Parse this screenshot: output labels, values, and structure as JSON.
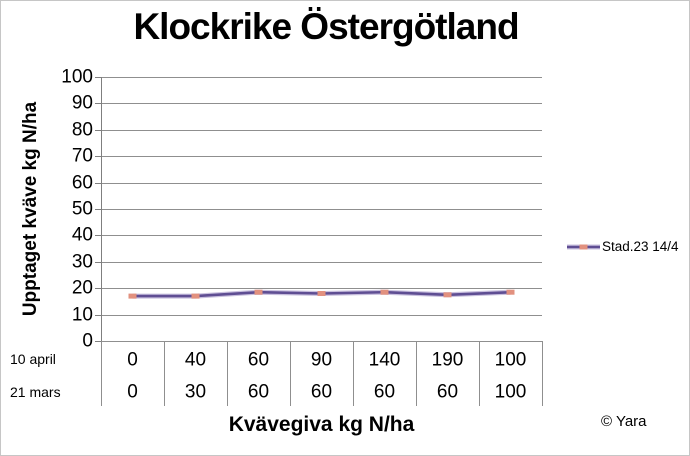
{
  "chart_data": {
    "type": "line",
    "title": "Klockrike Östergötland",
    "xlabel": "Kvävegiva kg N/ha",
    "ylabel": "Upptaget kväve kg N/ha",
    "ylim": [
      0,
      100
    ],
    "y_ticks": [
      0,
      10,
      20,
      30,
      40,
      50,
      60,
      70,
      80,
      90,
      100
    ],
    "grid": "horizontal",
    "legend_position": "right",
    "x_label_rows": [
      {
        "label": "10 april",
        "values": [
          0,
          40,
          60,
          90,
          140,
          190,
          100
        ]
      },
      {
        "label": "21 mars",
        "values": [
          0,
          30,
          60,
          60,
          60,
          60,
          100
        ]
      }
    ],
    "series": [
      {
        "name": "Stad.23 14/4",
        "values": [
          17,
          17,
          18.5,
          18,
          18.5,
          17.5,
          18.5
        ],
        "line_color": "#5f4e93",
        "line_halo_color": "#9c8cc2",
        "marker_color": "#e2917f",
        "marker_shape": "square"
      }
    ],
    "colors": {
      "gridline": "#8f8f8f",
      "axis": "#7f7f7f"
    }
  },
  "misc": {
    "copyright": "© Yara"
  }
}
